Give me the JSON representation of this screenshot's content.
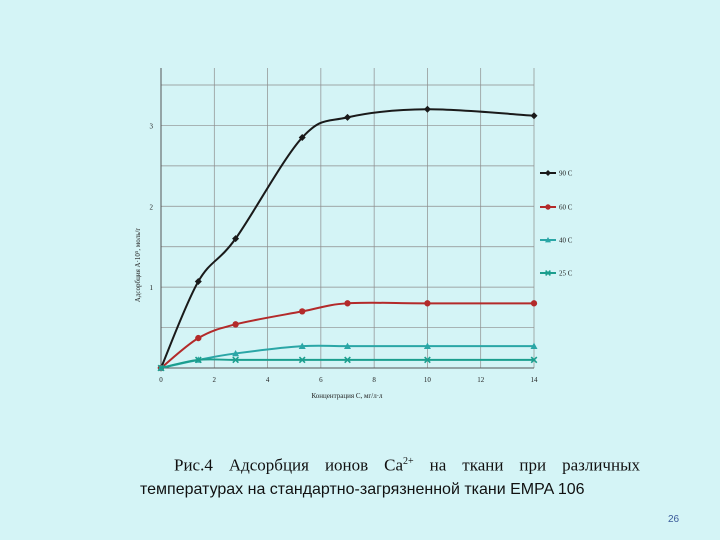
{
  "caption": {
    "line1_prefix": "Рис.4 Адсорбция ионов Са",
    "line1_sup": "2+",
    "line1_suffix": " на ткани при различных",
    "line2": "температурах на стандартно-загрязненной ткани EMPA 106"
  },
  "page_number": "26",
  "chart_data": {
    "type": "line",
    "ylabel": "Адсорбция А·10⁵, моль/г",
    "xlabel": "Концентрация С, мг/л·л",
    "x_ticks": [
      0,
      2,
      4,
      6,
      8,
      10,
      12,
      14
    ],
    "y_ticks": [
      1,
      2,
      3
    ],
    "xlim": [
      0,
      14
    ],
    "ylim": [
      0,
      3.5
    ],
    "grid": true,
    "legend_position": "right",
    "series": [
      {
        "name": "90 С",
        "color": "#1a1a1a",
        "marker": "diamond",
        "x": [
          0,
          1.4,
          2.8,
          5.3,
          7,
          10,
          14
        ],
        "y": [
          0,
          1.07,
          1.6,
          2.85,
          3.1,
          3.2,
          3.12
        ]
      },
      {
        "name": "60 С",
        "color": "#b32a2a",
        "marker": "circle",
        "x": [
          0,
          1.4,
          2.8,
          5.3,
          7,
          10,
          14
        ],
        "y": [
          0,
          0.37,
          0.54,
          0.7,
          0.8,
          0.8,
          0.8
        ]
      },
      {
        "name": "40 С",
        "color": "#2aa6a6",
        "marker": "triangle",
        "x": [
          0,
          1.4,
          2.8,
          5.3,
          7,
          10,
          14
        ],
        "y": [
          0,
          0.1,
          0.18,
          0.27,
          0.27,
          0.27,
          0.27
        ]
      },
      {
        "name": "25 С",
        "color": "#1b9e8e",
        "marker": "cross",
        "x": [
          0,
          1.4,
          2.8,
          5.3,
          7,
          10,
          14
        ],
        "y": [
          0,
          0.1,
          0.1,
          0.1,
          0.1,
          0.1,
          0.1
        ]
      }
    ]
  }
}
